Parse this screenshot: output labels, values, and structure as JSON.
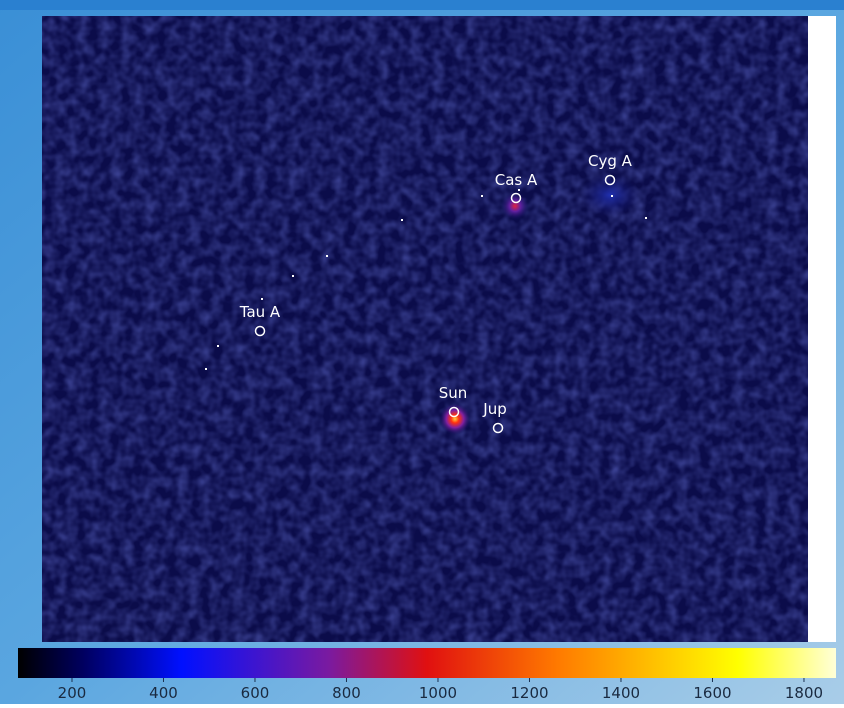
{
  "sources": [
    {
      "label": "Cyg A"
    },
    {
      "label": "Cas A"
    },
    {
      "label": "Tau A"
    },
    {
      "label": "Sun"
    },
    {
      "label": "Jup"
    }
  ],
  "colorbar": {
    "range": [
      82,
      1870
    ],
    "ticks": [
      200,
      400,
      600,
      800,
      1000,
      1200,
      1400,
      1600,
      1800
    ]
  }
}
